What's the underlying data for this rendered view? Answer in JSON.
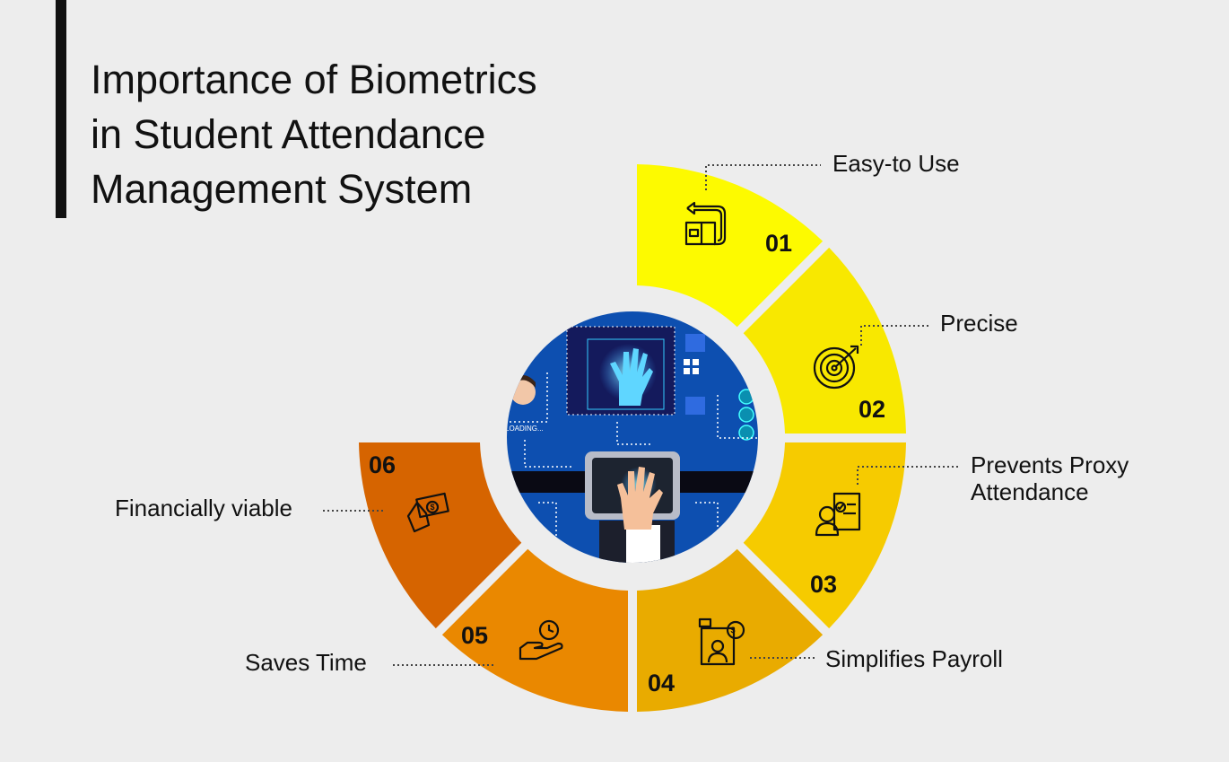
{
  "title": {
    "lines": [
      "Importance of Biometrics",
      "in Student Attendance",
      "Management System"
    ]
  },
  "segments": [
    {
      "number": "01",
      "label": "Easy-to Use",
      "icon": "box-return-icon",
      "color": "#fdfa00"
    },
    {
      "number": "02",
      "label": "Precise",
      "icon": "target-arrow-icon",
      "color": "#f8e800"
    },
    {
      "number": "03",
      "label_lines": [
        "Prevents Proxy",
        "Attendance"
      ],
      "icon": "person-checklist-icon",
      "color": "#f6cb00"
    },
    {
      "number": "04",
      "label": "Simplifies Payroll",
      "icon": "payroll-monitor-icon",
      "color": "#e9ab00"
    },
    {
      "number": "05",
      "label": "Saves Time",
      "icon": "hand-clock-icon",
      "color": "#ea8800"
    },
    {
      "number": "06",
      "label": "Financially viable",
      "icon": "hand-money-icon",
      "color": "#d66400"
    }
  ],
  "center_image": {
    "icon": "biometric-hand-scan-illustration",
    "caption_text": "LOADING...",
    "background": "#0d4fb0"
  },
  "colors": {
    "background": "#ededed",
    "text": "#111111"
  }
}
